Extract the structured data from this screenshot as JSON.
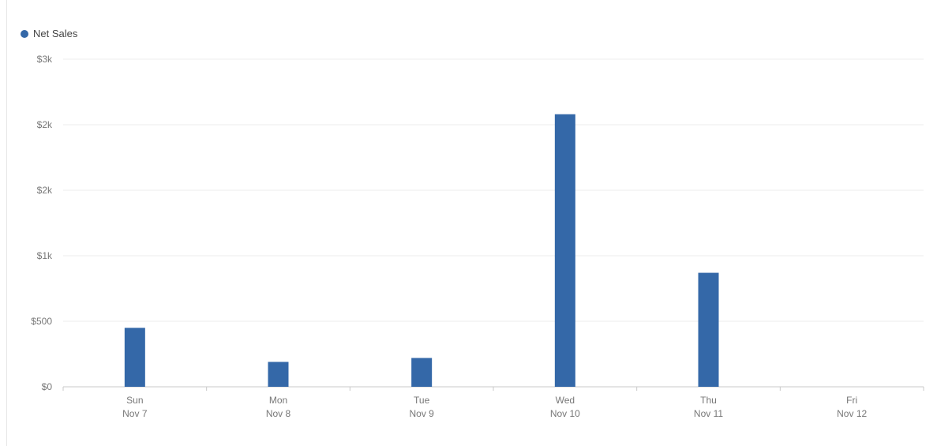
{
  "chart_data": {
    "type": "bar",
    "title": "",
    "xlabel": "",
    "ylabel": "",
    "legend": {
      "placement": "top-left",
      "entries": [
        "Net Sales"
      ]
    },
    "categories": [
      {
        "day": "Sun",
        "date": "Nov 7"
      },
      {
        "day": "Mon",
        "date": "Nov 8"
      },
      {
        "day": "Tue",
        "date": "Nov 9"
      },
      {
        "day": "Wed",
        "date": "Nov 10"
      },
      {
        "day": "Thu",
        "date": "Nov 11"
      },
      {
        "day": "Fri",
        "date": "Nov 12"
      }
    ],
    "series": [
      {
        "name": "Net Sales",
        "color": "#3468a8",
        "values": [
          450,
          190,
          220,
          2080,
          870,
          0
        ]
      }
    ],
    "y_ticks": [
      {
        "value": 0,
        "label": "$0"
      },
      {
        "value": 500,
        "label": "$500"
      },
      {
        "value": 1000,
        "label": "$1k"
      },
      {
        "value": 1500,
        "label": "$2k"
      },
      {
        "value": 2000,
        "label": "$2k"
      },
      {
        "value": 2500,
        "label": "$3k"
      }
    ],
    "ylim": [
      0,
      2500
    ],
    "grid": true
  }
}
